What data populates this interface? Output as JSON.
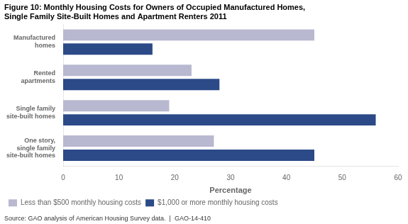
{
  "chart_data": {
    "type": "bar",
    "orientation": "horizontal",
    "title": "Figure 10: Monthly Housing Costs for Owners of Occupied Manufactured Homes,\nSingle Family Site-Built Homes and Apartment Renters 2011",
    "categories": [
      "Manufactured\nhomes",
      "Rented\napartments",
      "Single family\nsite-built homes",
      "One story,\nsingle family\nsite-built homes"
    ],
    "series": [
      {
        "name": "Less than $500 monthly housing costs",
        "color": "#b8b8d0",
        "values": [
          45,
          23,
          19,
          27
        ]
      },
      {
        "name": "$1,000 or more monthly housing costs",
        "color": "#2b4a87",
        "values": [
          16,
          28,
          56,
          45
        ]
      }
    ],
    "xlabel": "Percentage",
    "xlim": [
      0,
      60
    ],
    "xticks": [
      0,
      10,
      20,
      30,
      40,
      50,
      60
    ],
    "grid": false,
    "legend": "lower left",
    "annotations": [
      "Source: GAO analysis of American Housing Survey data.  |  GAO-14-410"
    ]
  }
}
